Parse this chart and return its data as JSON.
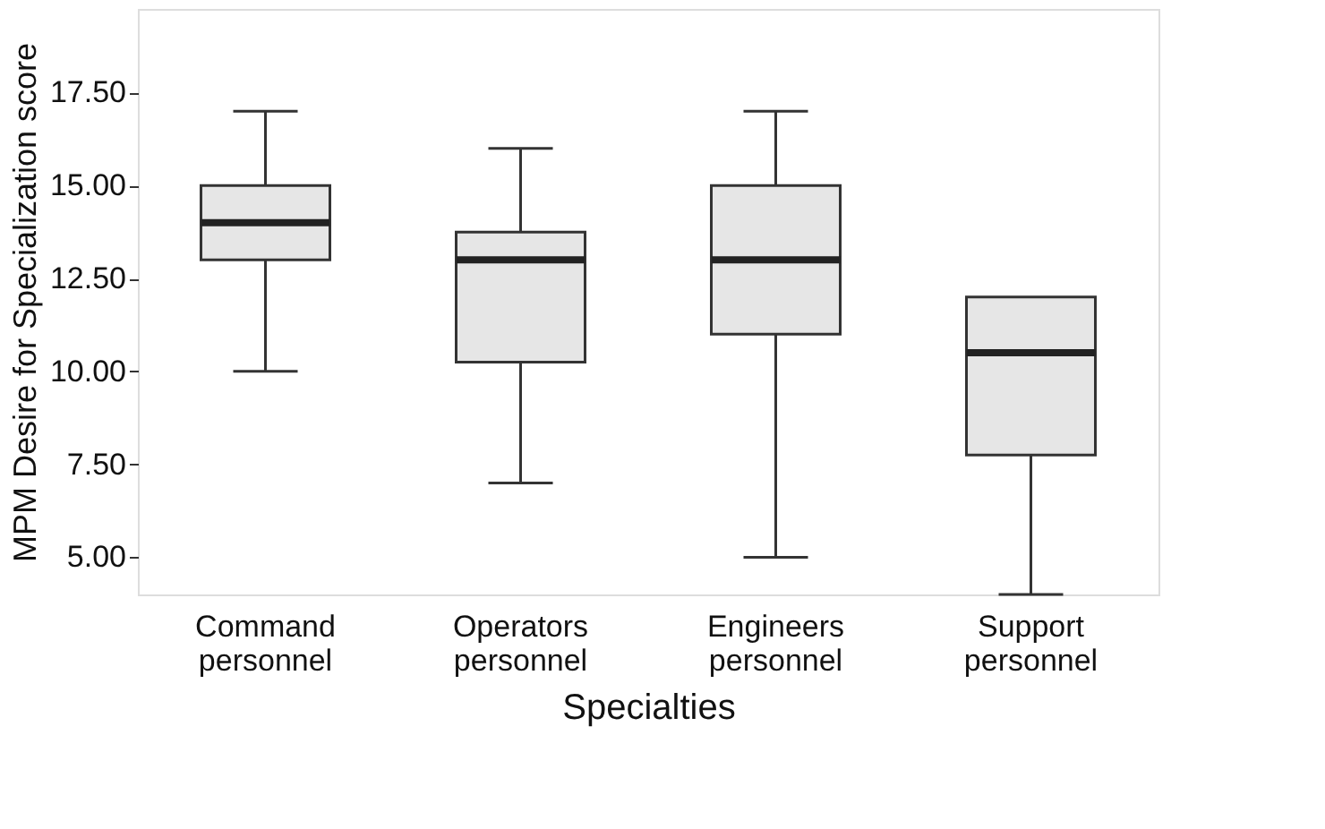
{
  "chart_data": {
    "type": "box",
    "xlabel": "Specialties",
    "ylabel": "MPM Desire for Specialization score",
    "categories": [
      "Command personnel",
      "Operators personnel",
      "Engineers personnel",
      "Support personnel"
    ],
    "boxes": [
      {
        "low": 10,
        "q1": 13,
        "median": 14,
        "q3": 15,
        "high": 17
      },
      {
        "low": 7,
        "q1": 10.25,
        "median": 13,
        "q3": 13.75,
        "high": 16
      },
      {
        "low": 5,
        "q1": 11,
        "median": 13,
        "q3": 15,
        "high": 17
      },
      {
        "low": 4,
        "q1": 7.75,
        "median": 10.5,
        "q3": 12,
        "high": 12
      }
    ],
    "color": "#e6e6e6",
    "ylim": [
      4,
      19.75
    ],
    "yticks": [
      {
        "value": 5,
        "label": "5.00"
      },
      {
        "value": 7.5,
        "label": "7.50"
      },
      {
        "value": 10,
        "label": "10.00"
      },
      {
        "value": 12.5,
        "label": "12.50"
      },
      {
        "value": 15,
        "label": "15.00"
      },
      {
        "value": 17.5,
        "label": "17.50"
      }
    ],
    "grid": false
  }
}
